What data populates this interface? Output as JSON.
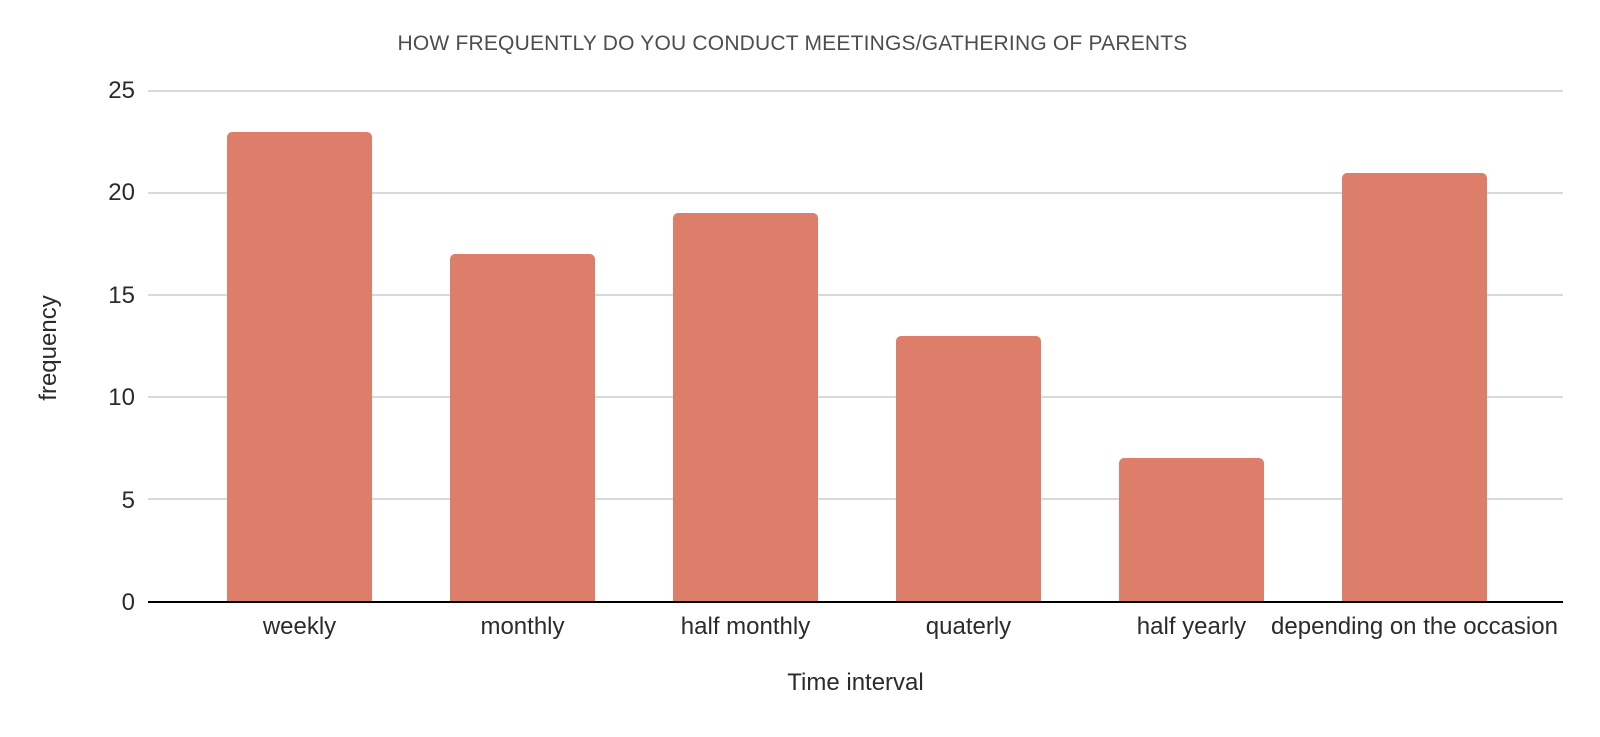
{
  "chart_data": {
    "type": "bar",
    "title": "HOW FREQUENTLY DO YOU CONDUCT MEETINGS/GATHERING OF PARENTS",
    "categories": [
      "weekly",
      "monthly",
      "half monthly",
      "quaterly",
      "half yearly",
      "depending on the occasion"
    ],
    "values": [
      23,
      17,
      19,
      13,
      7,
      21
    ],
    "xlabel": "Time interval",
    "ylabel": "frequency",
    "ylim": [
      0,
      25
    ],
    "yticks": [
      0,
      5,
      10,
      15,
      20,
      25
    ],
    "grid": "horizontal major gridlines only",
    "legend": "none",
    "colors": {
      "bar": "#DD7E6B",
      "gridline": "#D9D9D9",
      "axis_line": "#000000",
      "title_text": "#4D4D4D",
      "axis_text": "#2B2B2B",
      "background": "#FFFFFF"
    }
  }
}
